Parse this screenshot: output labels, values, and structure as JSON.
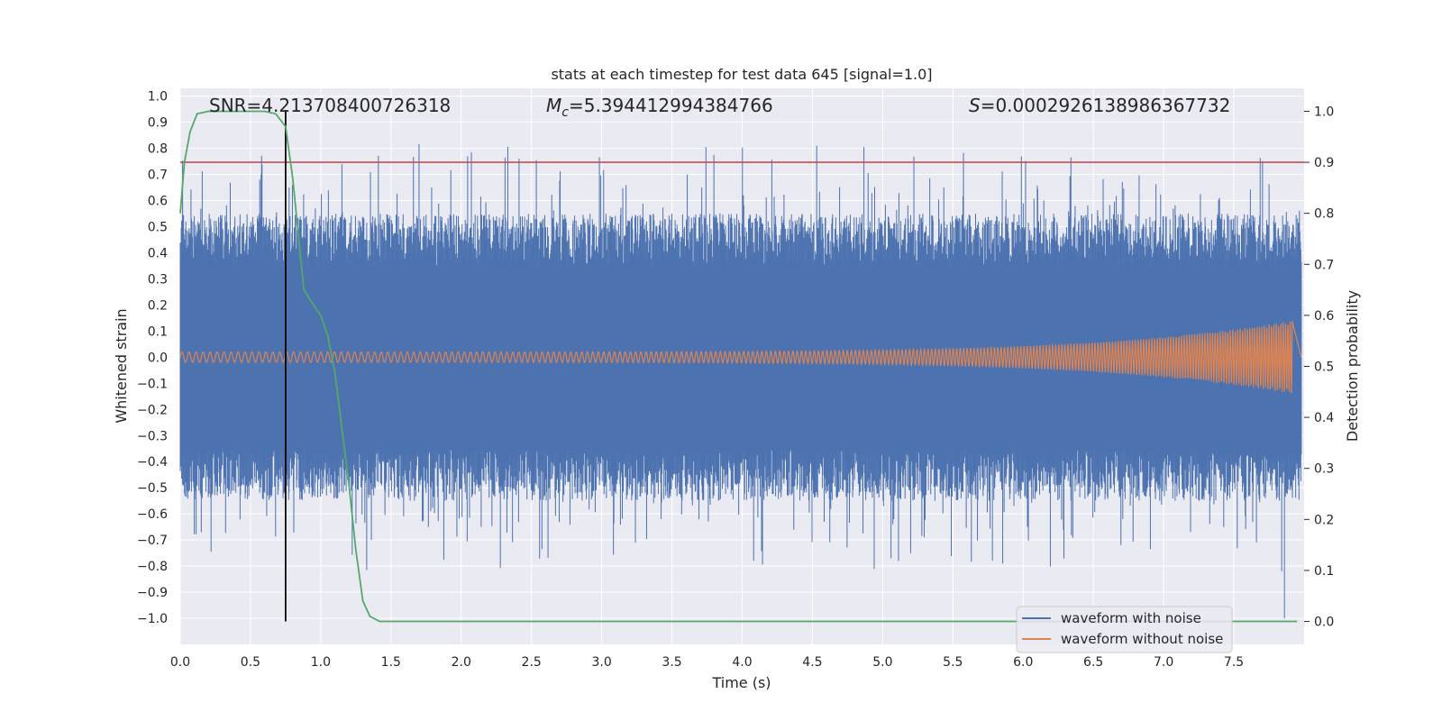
{
  "chart_data": {
    "type": "line",
    "title": "stats at each timestep for test data 645 [signal=1.0]",
    "xlabel": "Time (s)",
    "ylabel_left": "Whitened strain",
    "ylabel_right": "Detection probability",
    "xlim": [
      0.0,
      8.0
    ],
    "ylim_left": [
      -1.1,
      1.03
    ],
    "ylim_right": [
      -0.045,
      1.045
    ],
    "xticks": [
      0.0,
      0.5,
      1.0,
      1.5,
      2.0,
      2.5,
      3.0,
      3.5,
      4.0,
      4.5,
      5.0,
      5.5,
      6.0,
      6.5,
      7.0,
      7.5
    ],
    "xtick_labels": [
      "0.0",
      "0.5",
      "1.0",
      "1.5",
      "2.0",
      "2.5",
      "3.0",
      "3.5",
      "4.0",
      "4.5",
      "5.0",
      "5.5",
      "6.0",
      "6.5",
      "7.0",
      "7.5"
    ],
    "yticks_left": [
      1.0,
      0.9,
      0.8,
      0.7,
      0.6,
      0.5,
      0.4,
      0.3,
      0.2,
      0.1,
      0.0,
      -0.1,
      -0.2,
      -0.3,
      -0.4,
      -0.5,
      -0.6,
      -0.7,
      -0.8,
      -0.9,
      -1.0
    ],
    "ytick_labels_left": [
      "1.0",
      "0.9",
      "0.8",
      "0.7",
      "0.6",
      "0.5",
      "0.4",
      "0.3",
      "0.2",
      "0.1",
      "0.0",
      "−0.1",
      "−0.2",
      "−0.3",
      "−0.4",
      "−0.5",
      "−0.6",
      "−0.7",
      "−0.8",
      "−0.9",
      "−1.0"
    ],
    "yticks_right": [
      1.0,
      0.9,
      0.8,
      0.7,
      0.6,
      0.5,
      0.4,
      0.3,
      0.2,
      0.1,
      0.0
    ],
    "ytick_labels_right": [
      "1.0",
      "0.9",
      "0.8",
      "0.7",
      "0.6",
      "0.5",
      "0.4",
      "0.3",
      "0.2",
      "0.1",
      "0.0"
    ],
    "annotations": {
      "snr": "SNR=4.213708400726318",
      "mc_symbol": "M",
      "mc_sub": "c",
      "mc_value": "=5.394412994384766",
      "s_symbol": "S",
      "s_value": "=0.0002926138986367732"
    },
    "legend": {
      "placement": "lower right",
      "entries": [
        "waveform with noise",
        "waveform without noise"
      ]
    },
    "colors": {
      "noise": "#4c72b0",
      "clean": "#dd8452",
      "probability": "#55a868",
      "threshold": "#c44e52",
      "marker": "#000000",
      "background": "#eaeaf2",
      "grid": "#ffffff"
    },
    "series": [
      {
        "name": "waveform with noise",
        "axis": "left",
        "description_range": [
          -0.88,
          0.87
        ],
        "envelope_range": [
          -0.35,
          0.35
        ]
      },
      {
        "name": "waveform without noise",
        "axis": "left",
        "chirp_end": 7.92,
        "amplitude_start": 0.02,
        "amplitude_end": 0.14
      },
      {
        "axis": "right",
        "x": [
          0.0,
          0.03,
          0.07,
          0.12,
          0.2,
          0.35,
          0.5,
          0.6,
          0.68,
          0.75,
          0.8,
          0.88,
          0.95,
          1.0,
          1.05,
          1.1,
          1.15,
          1.2,
          1.25,
          1.3,
          1.35,
          1.42,
          1.5,
          2.0,
          7.95
        ],
        "y": [
          0.8,
          0.9,
          0.96,
          0.995,
          1.0,
          1.0,
          1.0,
          1.0,
          0.995,
          0.97,
          0.87,
          0.65,
          0.62,
          0.6,
          0.56,
          0.49,
          0.38,
          0.27,
          0.14,
          0.04,
          0.01,
          0.0,
          0.0,
          0.0,
          0.0
        ]
      }
    ],
    "threshold_right": 0.9,
    "marker_x": 0.75
  }
}
